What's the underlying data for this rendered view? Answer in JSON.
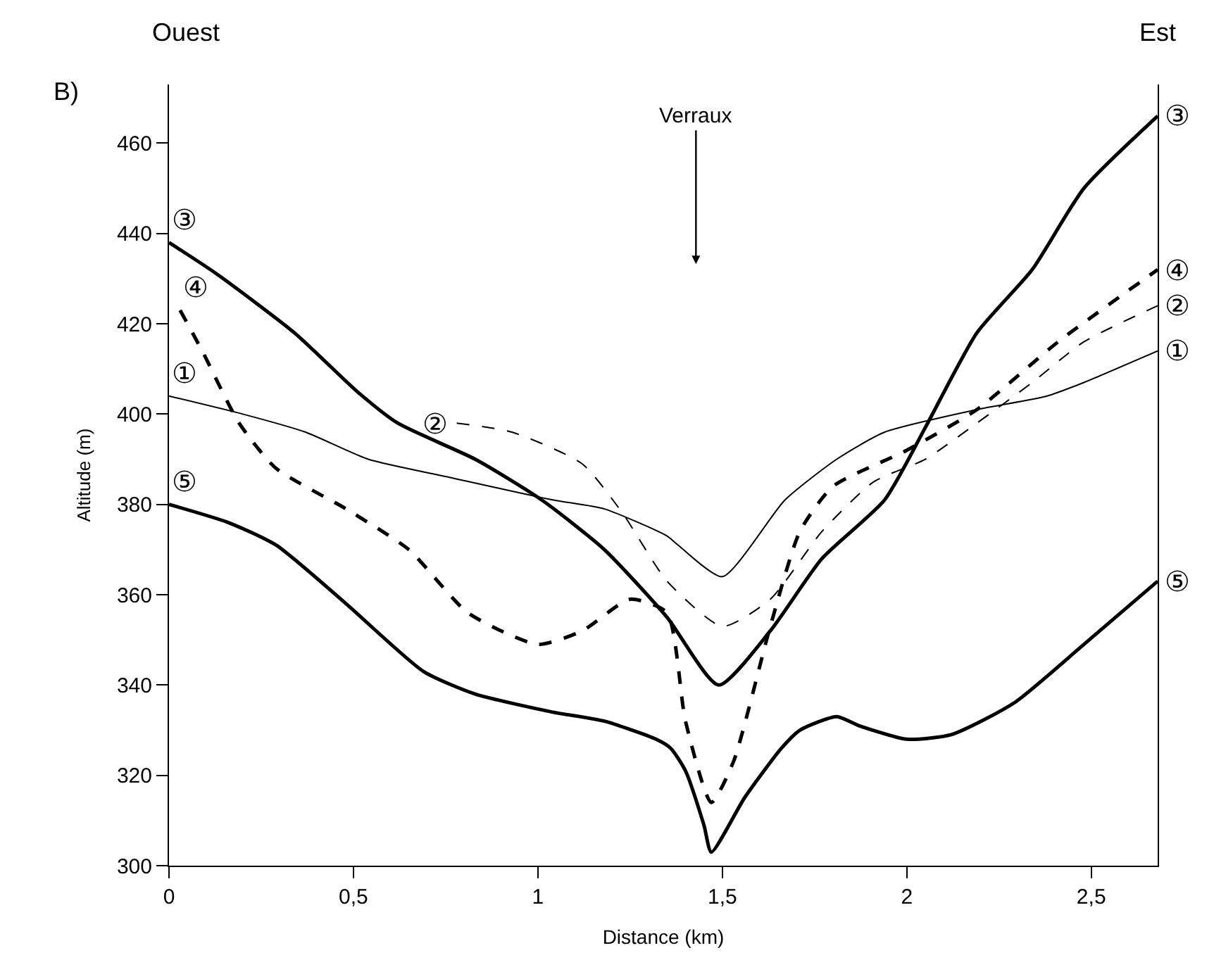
{
  "chart_data": {
    "type": "line",
    "xlabel": "Distance (km)",
    "ylabel": "Altitude (m)",
    "xlim": [
      0,
      2.68
    ],
    "ylim": [
      300,
      473
    ],
    "xticks": [
      {
        "value": 0,
        "label": "0"
      },
      {
        "value": 0.5,
        "label": "0,5"
      },
      {
        "value": 1,
        "label": "1"
      },
      {
        "value": 1.5,
        "label": "1,5"
      },
      {
        "value": 2,
        "label": "2"
      },
      {
        "value": 2.5,
        "label": "2,5"
      }
    ],
    "yticks": [
      300,
      320,
      340,
      360,
      380,
      400,
      420,
      440,
      460
    ],
    "legend": false,
    "marker": "none",
    "series": [
      {
        "name": "①",
        "color": "#000000",
        "line_style": "solid",
        "x": [
          0,
          0.2,
          0.37,
          0.54,
          0.76,
          1.04,
          1.18,
          1.35,
          1.38,
          1.5,
          1.67,
          1.81,
          1.94,
          2.19,
          2.38,
          2.48,
          2.68
        ],
        "values": [
          404,
          400,
          396,
          390,
          386,
          381,
          379,
          373,
          371,
          364,
          381,
          390,
          396,
          401,
          404,
          407,
          414
        ]
      },
      {
        "name": "②",
        "color": "#000000",
        "line_style": "dashed",
        "x": [
          0.78,
          0.93,
          1.12,
          1.23,
          1.35,
          1.5,
          1.63,
          1.77,
          1.91,
          2.05,
          2.19,
          2.34,
          2.48,
          2.68
        ],
        "values": [
          398,
          396,
          389,
          378,
          363,
          353,
          359,
          374,
          385,
          390,
          398,
          407,
          416,
          424
        ]
      },
      {
        "name": "③",
        "color": "#000000",
        "line_style": "solid",
        "x": [
          0,
          0.13,
          0.34,
          0.51,
          0.62,
          0.83,
          1.01,
          1.18,
          1.35,
          1.49,
          1.63,
          1.77,
          1.94,
          2.05,
          2.19,
          2.34,
          2.48,
          2.68
        ],
        "values": [
          438,
          431,
          418,
          405,
          398,
          390,
          381,
          370,
          355,
          340,
          352,
          368,
          381,
          397,
          418,
          432,
          450,
          466
        ]
      },
      {
        "name": "④",
        "color": "#000000",
        "line_style": "dashed",
        "x": [
          0.03,
          0.09,
          0.19,
          0.29,
          0.48,
          0.65,
          0.81,
          1.0,
          1.12,
          1.25,
          1.35,
          1.4,
          1.47,
          1.53,
          1.63,
          1.71,
          1.8,
          2.0,
          2.19,
          2.41,
          2.68
        ],
        "values": [
          423,
          414,
          398,
          388,
          379,
          370,
          356,
          349,
          352,
          359,
          356,
          332,
          314,
          323,
          353,
          374,
          384,
          392,
          401,
          416,
          432
        ]
      },
      {
        "name": "⑤",
        "color": "#000000",
        "line_style": "solid",
        "x": [
          0,
          0.16,
          0.29,
          0.48,
          0.69,
          0.83,
          1.04,
          1.18,
          1.32,
          1.36,
          1.4,
          1.45,
          1.47,
          1.56,
          1.66,
          1.71,
          1.81,
          1.87,
          2.0,
          2.12,
          2.29,
          2.48,
          2.68
        ],
        "values": [
          380,
          376,
          371,
          358,
          343,
          338,
          334,
          332,
          328,
          326,
          321,
          309,
          303,
          315,
          326,
          330,
          333,
          331,
          328,
          329,
          336,
          349,
          363
        ]
      }
    ],
    "annotations": [
      "Ouest",
      "Est",
      "B)",
      "Verraux"
    ]
  }
}
